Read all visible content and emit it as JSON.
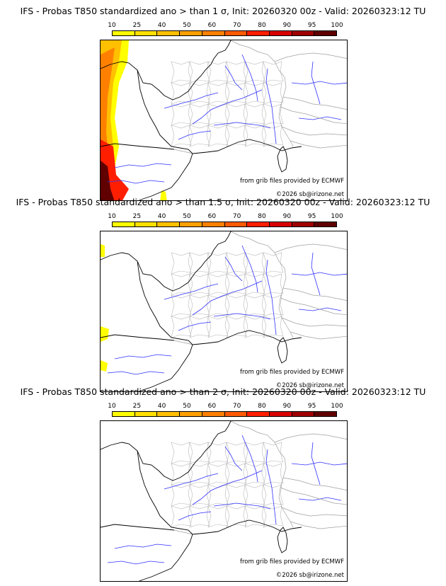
{
  "colorbar": {
    "ticks": [
      "10",
      "25",
      "40",
      "50",
      "60",
      "70",
      "80",
      "90",
      "95",
      "100"
    ],
    "colors": [
      "#ffff00",
      "#ffe000",
      "#ffc000",
      "#ffa000",
      "#ff8000",
      "#ff5a00",
      "#ff1e00",
      "#d80000",
      "#a00000",
      "#600000"
    ]
  },
  "panels": [
    {
      "title": "IFS - Probas T850  standardized ano > than 1 σ, Init: 20260320 00z - Valid: 20260323:12 TU",
      "prob_level": "high"
    },
    {
      "title": "IFS - Probas T850  standardized ano > than 1.5 σ, Init: 20260320 00z - Valid: 20260323:12 TU",
      "prob_level": "low"
    },
    {
      "title": "IFS - Probas T850  standardized ano > than 2 σ, Init: 20260320 00z - Valid: 20260323:12 TU",
      "prob_level": "none"
    }
  ],
  "credits": {
    "source": "from grib files provided by ECMWF",
    "copyright": "©2026 sb@irizone.net"
  }
}
